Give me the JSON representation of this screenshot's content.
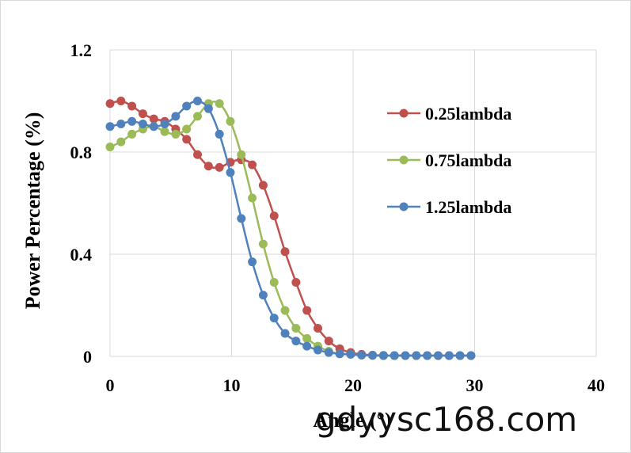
{
  "chart_data": {
    "type": "line",
    "xlabel": "Angle (°)",
    "ylabel": "Power Percentage (%)",
    "xlim": [
      0,
      40
    ],
    "ylim": [
      0,
      1.2
    ],
    "xticks": [
      "0",
      "10",
      "20",
      "30",
      "40"
    ],
    "yticks": [
      "0",
      "0.4",
      "0.8",
      "1.2"
    ],
    "ytick_values": [
      0,
      0.4,
      0.8,
      1.2
    ],
    "xtick_values": [
      0,
      10,
      20,
      30,
      40
    ],
    "grid": "on",
    "legend_position": "right",
    "x": [
      0,
      0.9,
      1.8,
      2.7,
      3.6,
      4.5,
      5.4,
      6.3,
      7.2,
      8.1,
      9.0,
      9.9,
      10.8,
      11.7,
      12.6,
      13.5,
      14.4,
      15.3,
      16.2,
      17.1,
      18.0,
      18.9,
      19.8,
      20.7,
      21.6,
      22.5,
      23.4,
      24.3,
      25.2,
      26.1,
      27.0,
      27.9,
      28.8,
      29.7
    ],
    "series": [
      {
        "name": "0.25lambda",
        "color": "#c0504d",
        "values": [
          0.99,
          1.0,
          0.98,
          0.95,
          0.93,
          0.92,
          0.89,
          0.85,
          0.79,
          0.745,
          0.74,
          0.76,
          0.77,
          0.75,
          0.67,
          0.55,
          0.41,
          0.29,
          0.18,
          0.11,
          0.06,
          0.03,
          0.015,
          0.008,
          0.005,
          0.004,
          0.003,
          0.003,
          0.003,
          0.003,
          0.003,
          0.003,
          0.003,
          0.003
        ]
      },
      {
        "name": "0.75lambda",
        "color": "#9bbb59",
        "values": [
          0.82,
          0.84,
          0.87,
          0.89,
          0.9,
          0.88,
          0.87,
          0.89,
          0.94,
          0.99,
          0.99,
          0.92,
          0.79,
          0.62,
          0.44,
          0.29,
          0.18,
          0.11,
          0.07,
          0.04,
          0.02,
          0.01,
          0.008,
          0.005,
          0.004,
          0.003,
          0.003,
          0.003,
          0.003,
          0.003,
          0.003,
          0.003,
          0.003,
          0.003
        ]
      },
      {
        "name": "1.25lambda",
        "color": "#4f81bd",
        "values": [
          0.9,
          0.91,
          0.92,
          0.91,
          0.9,
          0.91,
          0.94,
          0.98,
          1.0,
          0.97,
          0.87,
          0.72,
          0.54,
          0.37,
          0.24,
          0.15,
          0.09,
          0.06,
          0.04,
          0.025,
          0.015,
          0.01,
          0.008,
          0.005,
          0.004,
          0.003,
          0.003,
          0.003,
          0.003,
          0.003,
          0.003,
          0.003,
          0.003,
          0.003
        ]
      }
    ]
  },
  "watermark": "gdyysc168.com"
}
